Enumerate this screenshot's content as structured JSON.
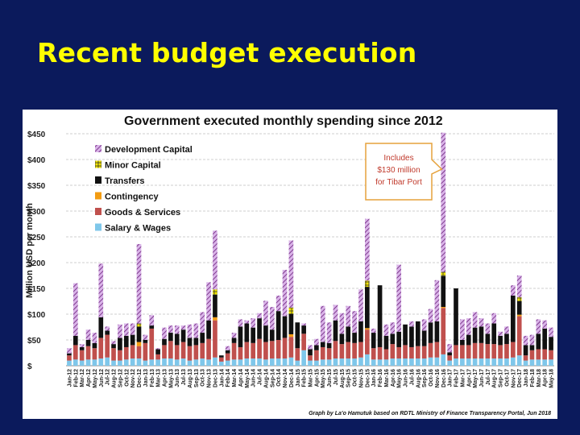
{
  "slide": {
    "title": "Recent budget execution"
  },
  "colors": {
    "background": "#0b1a5c",
    "title": "#ffff00"
  },
  "chart_data": {
    "type": "bar",
    "stacked": true,
    "title": "Government executed monthly spending since 2012",
    "ylabel": "Million USD per month",
    "xlabel": "",
    "ylim": [
      0,
      450
    ],
    "yticks": [
      0,
      50,
      100,
      150,
      200,
      250,
      300,
      350,
      400,
      450
    ],
    "ytick_labels": [
      "$",
      "$50",
      "$100",
      "$150",
      "$200",
      "$250",
      "$300",
      "$350",
      "$400",
      "$450"
    ],
    "grid": true,
    "legend_position": "top-left",
    "callout": {
      "lines": [
        "Includes",
        "$130 million",
        "for Tibar Port"
      ],
      "target_category": "Dec-16"
    },
    "credit": "Graph by La'o Hamutuk based on RDTL Ministry of Finance Transparency Portal, Jun 2018",
    "categories": [
      "Jan-12",
      "Feb-12",
      "Mar-12",
      "Apr-12",
      "May-12",
      "Jun-12",
      "Jul-12",
      "Aug-12",
      "Sep-12",
      "Oct-12",
      "Nov-12",
      "Dec-12",
      "Jan-13",
      "Feb-13",
      "Mar-13",
      "Apr-13",
      "May-13",
      "Jun-13",
      "Jul-13",
      "Aug-13",
      "Sep-13",
      "Oct-13",
      "Nov-13",
      "Dec-13",
      "Jan-14",
      "Feb-14",
      "Mar-14",
      "Apr-14",
      "May-14",
      "Jun-14",
      "Jul-14",
      "Aug-14",
      "Sep-14",
      "Oct-14",
      "Nov-14",
      "Dec-14",
      "Jan-15",
      "Feb-15",
      "Mar-15",
      "Apr-15",
      "May-15",
      "Jun-15",
      "Jul-15",
      "Aug-15",
      "Sep-15",
      "Oct-15",
      "Nov-15",
      "Dec-15",
      "Jan-16",
      "Feb-16",
      "Mar-16",
      "Apr-16",
      "May-16",
      "Jun-16",
      "Jul-16",
      "Aug-16",
      "Sep-16",
      "Oct-16",
      "Nov-16",
      "Dec-16",
      "Jan-17",
      "Feb-17",
      "Mar-17",
      "Apr-17",
      "May-17",
      "Jun-17",
      "Jul-17",
      "Aug-17",
      "Sep-17",
      "Oct-17",
      "Nov-17",
      "Dec-17",
      "Jan-18",
      "Feb-18",
      "Mar-18",
      "Apr-18",
      "May-18"
    ],
    "series": [
      {
        "name": "Salary & Wages",
        "color": "#7fc7ea",
        "values": [
          10,
          12,
          10,
          12,
          12,
          14,
          16,
          10,
          10,
          12,
          14,
          14,
          10,
          12,
          12,
          14,
          14,
          12,
          14,
          10,
          12,
          14,
          12,
          16,
          8,
          10,
          12,
          12,
          14,
          14,
          14,
          12,
          14,
          14,
          14,
          16,
          10,
          30,
          10,
          10,
          12,
          12,
          14,
          14,
          14,
          14,
          16,
          22,
          12,
          12,
          12,
          14,
          14,
          14,
          14,
          14,
          14,
          16,
          16,
          22,
          10,
          14,
          14,
          14,
          14,
          14,
          14,
          14,
          14,
          14,
          16,
          20,
          10,
          12,
          12,
          12,
          12
        ]
      },
      {
        "name": "Goods & Services",
        "color": "#c0504d",
        "values": [
          10,
          28,
          20,
          26,
          22,
          40,
          44,
          24,
          20,
          24,
          26,
          24,
          34,
          60,
          10,
          26,
          34,
          28,
          32,
          28,
          28,
          30,
          40,
          72,
          8,
          14,
          32,
          24,
          32,
          30,
          38,
          34,
          34,
          36,
          40,
          40,
          24,
          32,
          10,
          20,
          24,
          22,
          34,
          28,
          32,
          30,
          30,
          48,
          22,
          24,
          20,
          28,
          22,
          26,
          22,
          24,
          24,
          28,
          30,
          90,
          10,
          26,
          26,
          26,
          30,
          30,
          28,
          28,
          26,
          28,
          30,
          76,
          10,
          18,
          20,
          20,
          18
        ]
      },
      {
        "name": "Contingency",
        "color": "#f39c12",
        "values": [
          0,
          0,
          0,
          0,
          0,
          0,
          0,
          0,
          0,
          0,
          0,
          8,
          0,
          0,
          0,
          0,
          0,
          0,
          0,
          0,
          0,
          0,
          0,
          6,
          0,
          0,
          0,
          0,
          0,
          0,
          0,
          0,
          0,
          0,
          0,
          5,
          0,
          0,
          0,
          0,
          0,
          0,
          0,
          0,
          0,
          0,
          0,
          3,
          0,
          0,
          0,
          0,
          0,
          0,
          0,
          0,
          0,
          0,
          0,
          2,
          0,
          0,
          0,
          0,
          0,
          0,
          0,
          0,
          0,
          0,
          0,
          3,
          0,
          0,
          0,
          0,
          0
        ]
      },
      {
        "name": "Transfers",
        "color": "#111111",
        "values": [
          4,
          18,
          6,
          12,
          10,
          40,
          8,
          8,
          24,
          22,
          20,
          30,
          6,
          6,
          10,
          12,
          16,
          22,
          24,
          16,
          14,
          20,
          36,
          44,
          4,
          6,
          10,
          40,
          36,
          30,
          40,
          32,
          22,
          56,
          42,
          40,
          50,
          16,
          12,
          10,
          10,
          10,
          40,
          20,
          30,
          20,
          40,
          80,
          30,
          120,
          26,
          20,
          30,
          40,
          40,
          48,
          30,
          40,
          40,
          60,
          6,
          110,
          10,
          20,
          30,
          32,
          20,
          40,
          18,
          20,
          90,
          26,
          20,
          10,
          30,
          40,
          26
        ]
      },
      {
        "name": "Minor Capital",
        "color": "#f1e500",
        "values": [
          0,
          0,
          0,
          0,
          0,
          0,
          0,
          0,
          0,
          0,
          0,
          6,
          0,
          0,
          0,
          0,
          0,
          0,
          0,
          0,
          0,
          0,
          0,
          10,
          0,
          0,
          0,
          0,
          0,
          0,
          0,
          0,
          0,
          0,
          0,
          12,
          0,
          0,
          0,
          0,
          0,
          0,
          0,
          0,
          0,
          0,
          0,
          12,
          0,
          0,
          0,
          0,
          0,
          0,
          0,
          0,
          0,
          0,
          0,
          8,
          0,
          0,
          0,
          0,
          0,
          0,
          0,
          0,
          0,
          0,
          0,
          8,
          0,
          0,
          0,
          0,
          0
        ]
      },
      {
        "name": "Development Capital",
        "color": "#c79ad9",
        "values": [
          10,
          102,
          6,
          20,
          20,
          104,
          8,
          6,
          26,
          24,
          22,
          154,
          10,
          20,
          2,
          22,
          14,
          16,
          8,
          26,
          28,
          40,
          74,
          114,
          0,
          8,
          10,
          14,
          6,
          18,
          10,
          48,
          44,
          30,
          90,
          130,
          0,
          4,
          8,
          12,
          70,
          40,
          30,
          40,
          40,
          42,
          62,
          120,
          8,
          0,
          22,
          22,
          130,
          0,
          10,
          0,
          22,
          26,
          80,
          270,
          16,
          0,
          40,
          32,
          30,
          16,
          20,
          20,
          8,
          14,
          20,
          42,
          18,
          20,
          28,
          16,
          18
        ]
      }
    ]
  }
}
